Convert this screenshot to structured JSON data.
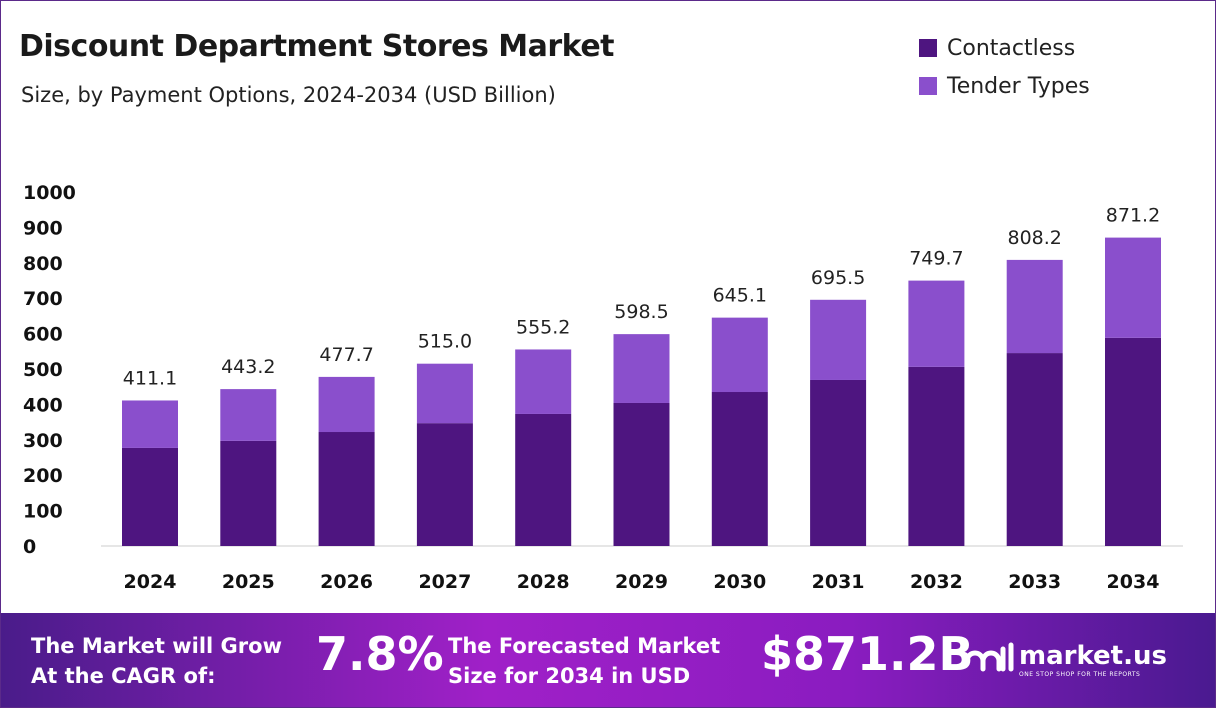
{
  "chart_data": {
    "type": "bar",
    "stacked": true,
    "title": "Discount Department Stores Market",
    "subtitle": "Size, by Payment Options, 2024-2034 (USD Billion)",
    "categories": [
      "2024",
      "2025",
      "2026",
      "2027",
      "2028",
      "2029",
      "2030",
      "2031",
      "2032",
      "2033",
      "2034"
    ],
    "totals": [
      "411.1",
      "443.2",
      "477.7",
      "515.0",
      "555.2",
      "598.5",
      "645.1",
      "695.5",
      "749.7",
      "808.2",
      "871.2"
    ],
    "series": [
      {
        "name": "Contactless",
        "color": "#4e1580",
        "values": [
          277,
          297,
          322,
          347,
          373,
          404,
          435,
          469,
          506,
          545,
          588
        ]
      },
      {
        "name": "Tender Types",
        "color": "#8a4fcc",
        "values": [
          134.1,
          146.2,
          155.7,
          168.0,
          182.2,
          194.5,
          210.1,
          226.5,
          243.7,
          263.2,
          283.2
        ]
      }
    ],
    "ylim": [
      0,
      1000
    ],
    "yticks": [
      "0",
      "100",
      "200",
      "300",
      "400",
      "500",
      "600",
      "700",
      "800",
      "900",
      "1000"
    ],
    "grid": false,
    "legend": "top-right"
  },
  "footer": {
    "cagr_label_1": "The Market will Grow",
    "cagr_label_2": "At the CAGR of:",
    "cagr": "7.8%",
    "forecast_label_1": "The Forecasted Market",
    "forecast_label_2": "Size for 2034 in USD",
    "forecast": "$871.2B",
    "brand": "market.us",
    "tagline": "ONE STOP SHOP FOR THE REPORTS"
  }
}
